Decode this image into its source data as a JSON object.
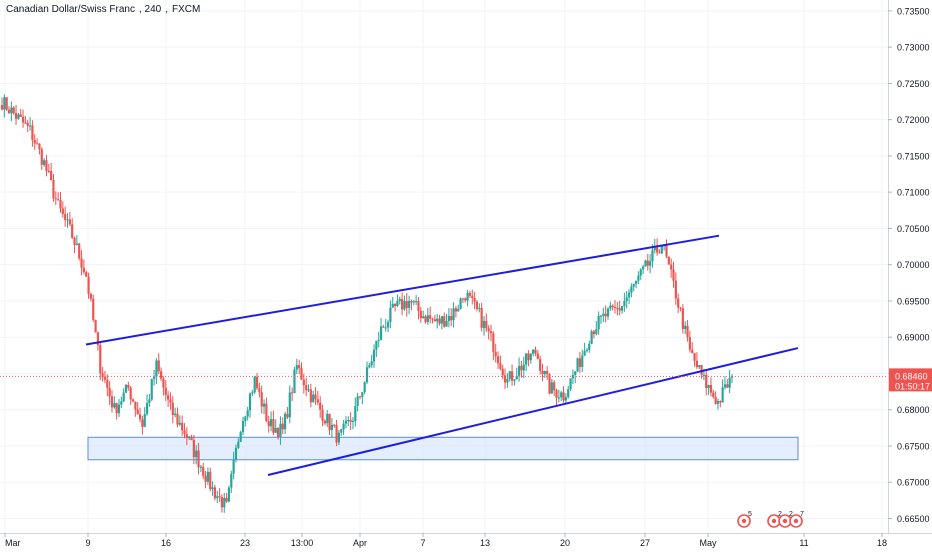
{
  "title": {
    "symbol": "Canadian Dollar/Swiss Franc",
    "interval": "240",
    "source": "FXCM"
  },
  "price_axis": {
    "ticks": [
      "0.73500",
      "0.73000",
      "0.72500",
      "0.72000",
      "0.71500",
      "0.71000",
      "0.70500",
      "0.70000",
      "0.69500",
      "0.69000",
      "0.68500",
      "0.68000",
      "0.67500",
      "0.67000",
      "0.66500"
    ],
    "last_price": "0.68460",
    "countdown": "01:50:17"
  },
  "time_axis": {
    "labels": [
      "Mar",
      "9",
      "16",
      "23",
      "13:00",
      "Apr",
      "7",
      "13",
      "20",
      "27",
      "May",
      "11",
      "18"
    ]
  },
  "event_markers": [
    "5",
    "2",
    "2",
    "7"
  ],
  "colors": {
    "up": "#26a69a",
    "down": "#ef5350",
    "trendline": "#1e1ee0",
    "zone_fill": "#dbe8fb",
    "zone_border": "#5b8fd6",
    "price_line": "#ef5350"
  },
  "chart_data": {
    "type": "candlestick",
    "symbol": "Canadian Dollar/Swiss Franc",
    "interval": "240",
    "ylim": [
      0.663,
      0.7365
    ],
    "x_range": [
      "Mar",
      "18"
    ],
    "close_path": [
      [
        "Mar",
        0.7225
      ],
      [
        "Mar",
        0.7205
      ],
      [
        "Mar",
        0.7185
      ],
      [
        "Mar",
        0.714
      ],
      [
        "Mar",
        0.708
      ],
      [
        "Mar",
        0.704
      ],
      [
        "Mar",
        0.6985
      ],
      [
        "9",
        0.686
      ],
      [
        "9",
        0.68
      ],
      [
        "9",
        0.683
      ],
      [
        "9",
        0.678
      ],
      [
        "16",
        0.686
      ],
      [
        "16",
        0.68
      ],
      [
        "16",
        0.677
      ],
      [
        "16",
        0.673
      ],
      [
        "16",
        0.669
      ],
      [
        "16",
        0.6665
      ],
      [
        "23",
        0.678
      ],
      [
        "23",
        0.684
      ],
      [
        "23",
        0.678
      ],
      [
        "23",
        0.677
      ],
      [
        "13:00",
        0.686
      ],
      [
        "13:00",
        0.682
      ],
      [
        "13:00",
        0.679
      ],
      [
        "13:00",
        0.676
      ],
      [
        "Apr",
        0.679
      ],
      [
        "Apr",
        0.685
      ],
      [
        "Apr",
        0.691
      ],
      [
        "Apr",
        0.694
      ],
      [
        "7",
        0.695
      ],
      [
        "7",
        0.693
      ],
      [
        "7",
        0.692
      ],
      [
        "13",
        0.693
      ],
      [
        "13",
        0.696
      ],
      [
        "13",
        0.693
      ],
      [
        "13",
        0.689
      ],
      [
        "13",
        0.684
      ],
      [
        "20",
        0.686
      ],
      [
        "20",
        0.688
      ],
      [
        "20",
        0.683
      ],
      [
        "20",
        0.682
      ],
      [
        "20",
        0.686
      ],
      [
        "27",
        0.691
      ],
      [
        "27",
        0.693
      ],
      [
        "27",
        0.694
      ],
      [
        "27",
        0.697
      ],
      [
        "27",
        0.7
      ],
      [
        "27",
        0.703
      ],
      [
        "May",
        0.696
      ],
      [
        "May",
        0.688
      ],
      [
        "May",
        0.684
      ],
      [
        "May",
        0.681
      ],
      [
        "May",
        0.6846
      ]
    ],
    "last_price": 0.6846,
    "trendlines": [
      {
        "from": [
          "9",
          0.689
        ],
        "to": [
          "27",
          0.704
        ]
      },
      {
        "from": [
          "23",
          0.671
        ],
        "to": [
          "May",
          0.6885
        ]
      }
    ],
    "zones": [
      {
        "from": "9",
        "to": "May",
        "y_low": 0.6731,
        "y_high": 0.6762
      }
    ]
  }
}
